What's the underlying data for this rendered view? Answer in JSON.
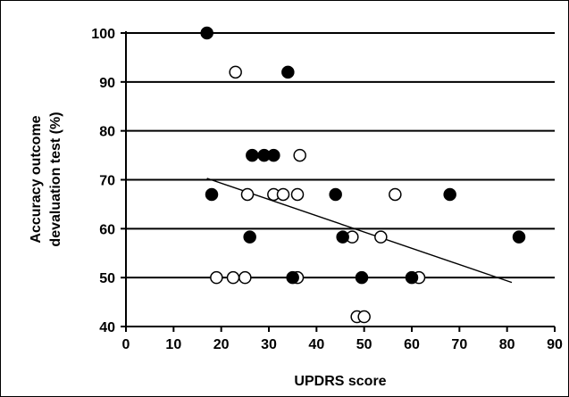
{
  "chart_data": {
    "type": "scatter",
    "title": "",
    "xlabel": "UPDRS score",
    "ylabel_lines": [
      "Accuracy outcome",
      "devaluation test (%)"
    ],
    "xlim": [
      0,
      90
    ],
    "ylim": [
      40,
      100
    ],
    "x_ticks": [
      0,
      10,
      20,
      30,
      40,
      50,
      60,
      70,
      80,
      90
    ],
    "y_ticks": [
      40,
      50,
      60,
      70,
      80,
      90,
      100
    ],
    "grid": "horizontal",
    "legend": "none",
    "series": [
      {
        "marker": "filled",
        "color": "#000000",
        "points": [
          [
            17,
            100
          ],
          [
            34,
            92
          ],
          [
            18,
            67
          ],
          [
            26.5,
            75
          ],
          [
            29,
            75
          ],
          [
            31,
            75
          ],
          [
            44,
            67
          ],
          [
            68,
            67
          ],
          [
            26,
            58.3
          ],
          [
            45.5,
            58.3
          ],
          [
            82.5,
            58.3
          ],
          [
            35,
            50
          ],
          [
            49.5,
            50
          ],
          [
            60,
            50
          ]
        ]
      },
      {
        "marker": "open",
        "color": "#000000",
        "points": [
          [
            23,
            92
          ],
          [
            25.5,
            67
          ],
          [
            31,
            67
          ],
          [
            33,
            67
          ],
          [
            36,
            67
          ],
          [
            56.5,
            67
          ],
          [
            36.5,
            75
          ],
          [
            47.5,
            58.3
          ],
          [
            53.5,
            58.3
          ],
          [
            19,
            50
          ],
          [
            22.5,
            50
          ],
          [
            25,
            50
          ],
          [
            36,
            50
          ],
          [
            61.5,
            50
          ],
          [
            48.5,
            42
          ],
          [
            50,
            42
          ]
        ]
      }
    ],
    "trendline": {
      "x1": 17,
      "y1": 70.3,
      "x2": 81,
      "y2": 49
    }
  }
}
